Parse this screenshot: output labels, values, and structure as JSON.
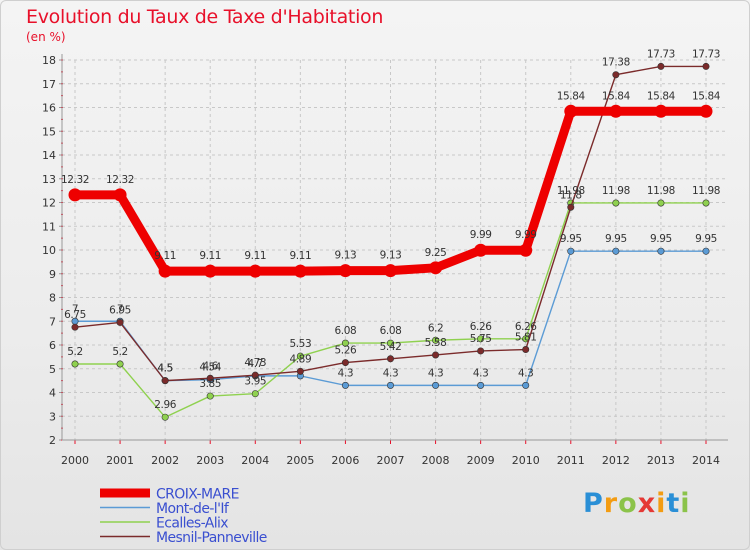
{
  "title": "Evolution du Taux de Taxe d'Habitation",
  "units": "(en %)",
  "logo": {
    "p": "P",
    "r": "r",
    "o": "o",
    "x": "x",
    "i1": "i",
    "t": "t",
    "i2": "i"
  },
  "chart_data": {
    "type": "line",
    "x": [
      2000,
      2001,
      2002,
      2003,
      2004,
      2005,
      2006,
      2007,
      2008,
      2009,
      2010,
      2011,
      2012,
      2013,
      2014
    ],
    "x_tick_labels": [
      "2000",
      "2001",
      "2002",
      "2003",
      "2004",
      "2005",
      "2006",
      "2007",
      "2008",
      "2009",
      "2010",
      "2011",
      "2012",
      "2013",
      "2014"
    ],
    "ylim": [
      2,
      18
    ],
    "y_ticks": [
      2,
      3,
      4,
      5,
      6,
      7,
      8,
      9,
      10,
      11,
      12,
      13,
      14,
      15,
      16,
      17,
      18
    ],
    "grid": true,
    "legend_position": "bottom-left",
    "series": [
      {
        "name": "CROIX-MARE",
        "color": "#ee0000",
        "emphasis": true,
        "values": [
          12.32,
          12.32,
          9.11,
          9.11,
          9.11,
          9.11,
          9.13,
          9.13,
          9.25,
          9.99,
          9.99,
          15.84,
          15.84,
          15.84,
          15.84
        ],
        "labels": [
          "12.32",
          "12.32",
          "9.11",
          "9.11",
          "9.11",
          "9.11",
          "9.13",
          "9.13",
          "9.25",
          "9.99",
          "9.99",
          "15.84",
          "15.84",
          "15.84",
          "15.84"
        ]
      },
      {
        "name": "Mont-de-l'If",
        "color": "#5b9bd5",
        "values": [
          7,
          7,
          4.5,
          4.54,
          4.7,
          4.7,
          4.3,
          4.3,
          4.3,
          4.3,
          4.3,
          9.95,
          9.95,
          9.95,
          9.95
        ],
        "labels": [
          "7",
          "7",
          "4.5",
          "4.54",
          "4.7",
          "",
          "4.3",
          "4.3",
          "4.3",
          "4.3",
          "4.3",
          "9.95",
          "9.95",
          "9.95",
          "9.95"
        ]
      },
      {
        "name": "Ecalles-Alix",
        "color": "#8fd14f",
        "values": [
          5.2,
          5.2,
          2.96,
          3.85,
          3.95,
          5.53,
          6.08,
          6.08,
          6.2,
          6.26,
          6.26,
          11.98,
          11.98,
          11.98,
          11.98
        ],
        "labels": [
          "5.2",
          "5.2",
          "2.96",
          "3.85",
          "3.95",
          "5.53",
          "6.08",
          "6.08",
          "6.2",
          "6.26",
          "6.26",
          "11.98",
          "11.98",
          "11.98",
          "11.98"
        ]
      },
      {
        "name": "Mesnil-Panneville",
        "color": "#7b2b2b",
        "values": [
          6.75,
          6.95,
          4.5,
          4.6,
          4.73,
          4.89,
          5.26,
          5.42,
          5.58,
          5.75,
          5.81,
          11.8,
          17.38,
          17.73,
          17.73
        ],
        "labels": [
          "6.75",
          "6.95",
          "4.5",
          "4.6",
          "4.73",
          "4.89",
          "5.26",
          "5.42",
          "5.58",
          "5.75",
          "5.81",
          "11.8",
          "17.38",
          "17.73",
          "17.73"
        ]
      }
    ]
  }
}
